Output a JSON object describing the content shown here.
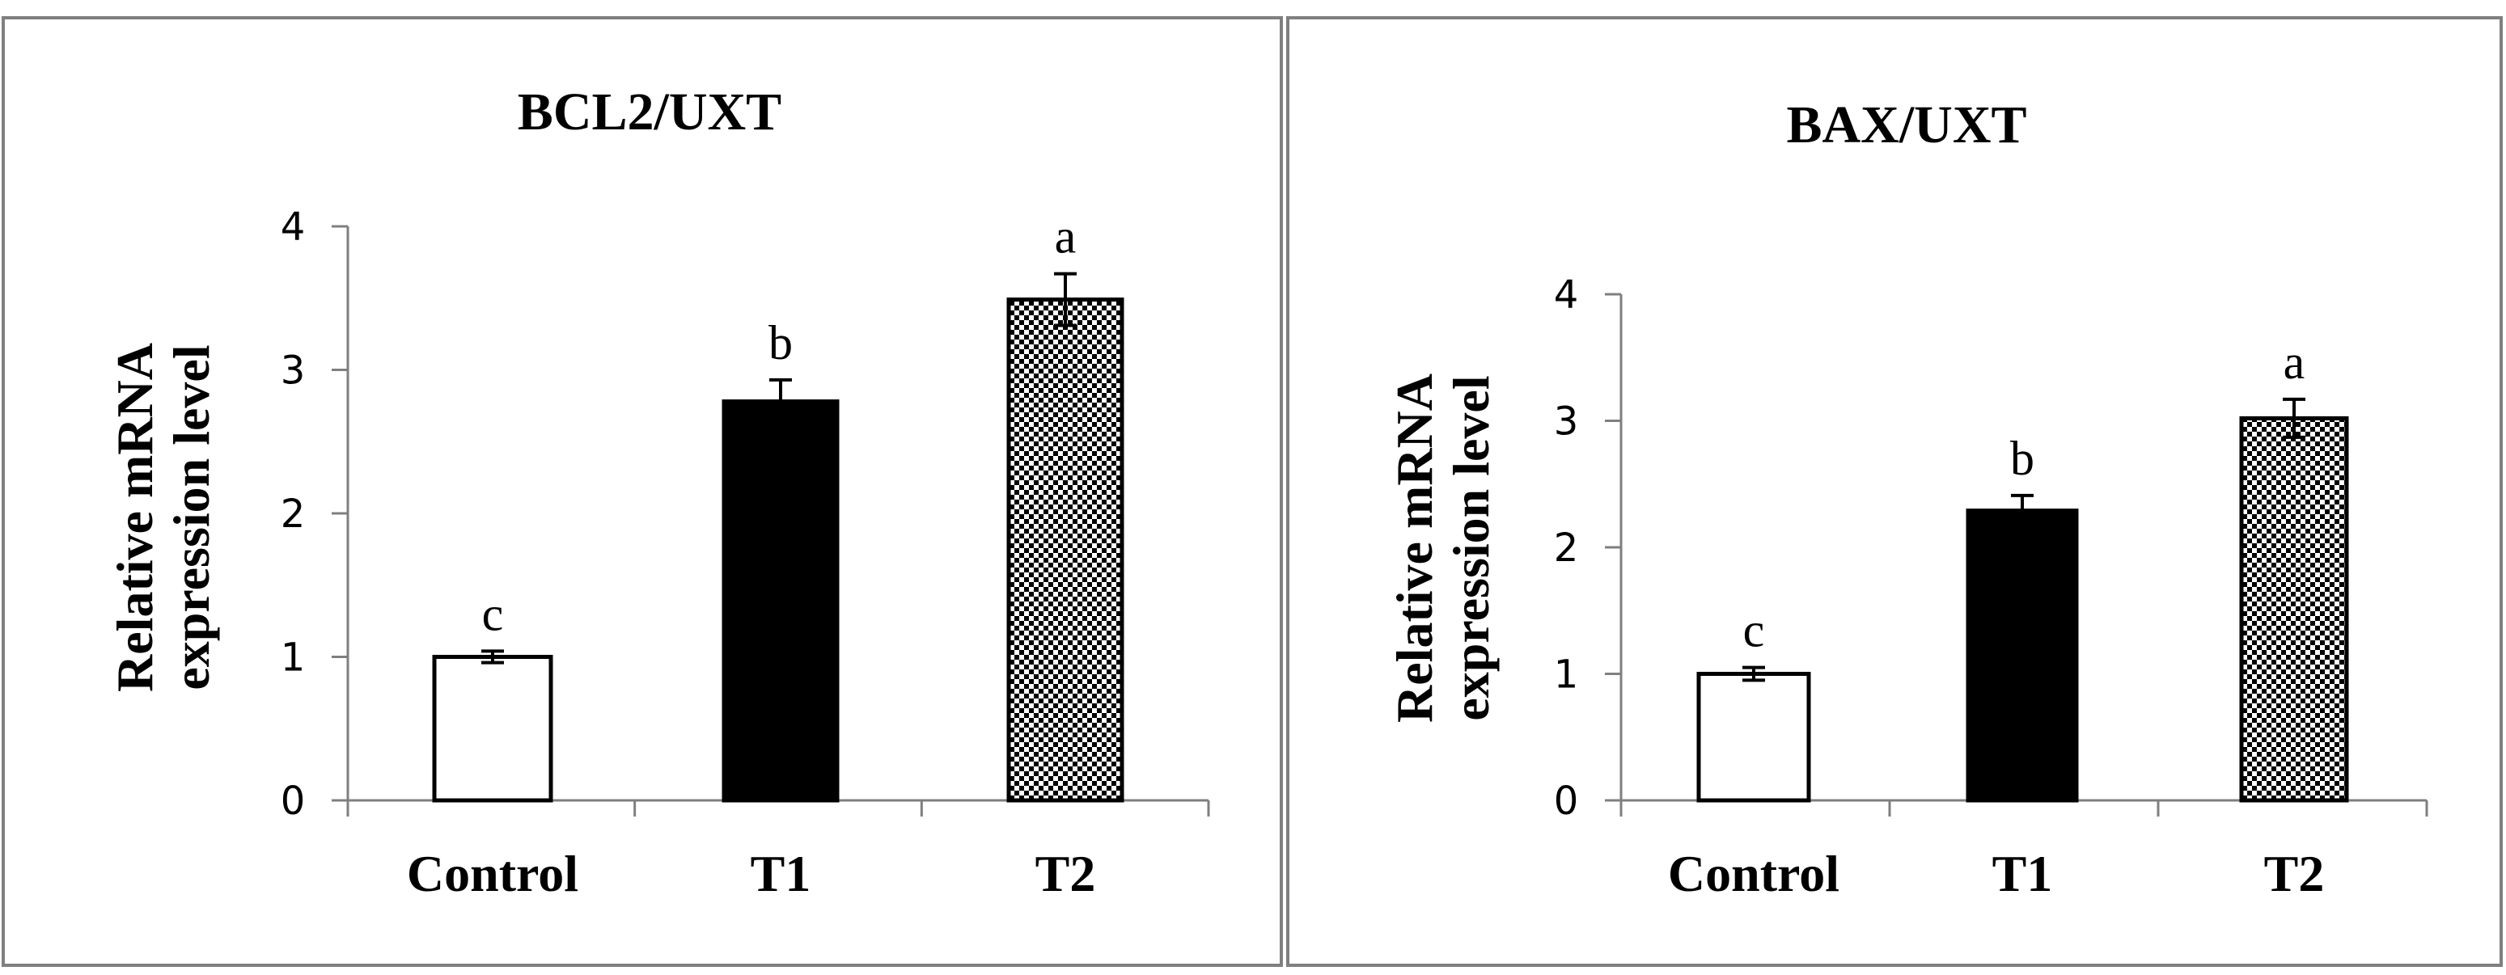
{
  "chart_data": [
    {
      "type": "bar",
      "title": "BCL2/UXT",
      "xlabel": "",
      "ylabel": [
        "Relative mRNA",
        "expression level"
      ],
      "ylim": [
        0,
        4
      ],
      "yticks": [
        0,
        1,
        2,
        3,
        4
      ],
      "categories": [
        "Control",
        "T1",
        "T2"
      ],
      "values": [
        1.0,
        2.78,
        3.49
      ],
      "errors": [
        0.04,
        0.15,
        0.18
      ],
      "significance": [
        "c",
        "b",
        "a"
      ],
      "fills": [
        "white",
        "black",
        "checkered"
      ]
    },
    {
      "type": "bar",
      "title": "BAX/UXT",
      "xlabel": "",
      "ylabel": [
        "Relative mRNA",
        "expression level"
      ],
      "ylim": [
        0,
        4
      ],
      "yticks": [
        0,
        1,
        2,
        3,
        4
      ],
      "categories": [
        "Control",
        "T1",
        "T2"
      ],
      "values": [
        1.0,
        2.29,
        3.02
      ],
      "errors": [
        0.05,
        0.12,
        0.15
      ],
      "significance": [
        "c",
        "b",
        "a"
      ],
      "fills": [
        "white",
        "black",
        "checkered"
      ]
    }
  ]
}
